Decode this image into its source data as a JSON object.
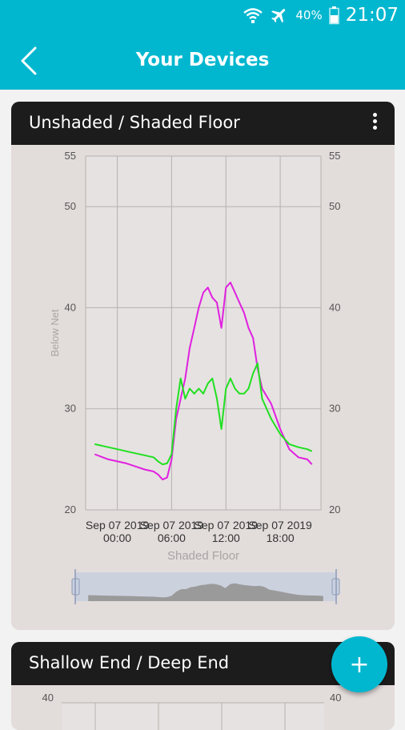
{
  "status": {
    "battery_percent": "40%",
    "time": "21:07"
  },
  "appbar": {
    "title": "Your Devices"
  },
  "cards": [
    {
      "title": "Unshaded / Shaded Floor",
      "chart_data": {
        "type": "line",
        "title": "",
        "xlabel": "Shaded Floor",
        "ylabel": "Below Net",
        "ylim": [
          20,
          55
        ],
        "y_ticks": [
          "55",
          "50",
          "40",
          "30",
          "20"
        ],
        "x_ticks": [
          {
            "line1": "Sep 07 2019",
            "line2": "00:00"
          },
          {
            "line1": "Sep 07 2019",
            "line2": "06:00"
          },
          {
            "line1": "Sep 07 2019",
            "line2": "12:00"
          },
          {
            "line1": "Sep 07 2019",
            "line2": "18:00"
          }
        ],
        "x": [
          -2.5,
          -1,
          0,
          1,
          2,
          3,
          4,
          4.5,
          5,
          5.5,
          6,
          6.5,
          7,
          7.5,
          8,
          8.5,
          9,
          9.5,
          10,
          10.5,
          11,
          11.5,
          12,
          12.5,
          13,
          13.5,
          14,
          14.5,
          15,
          15.5,
          16,
          17,
          18,
          19,
          20,
          21,
          21.5
        ],
        "series": [
          {
            "color": "#e020e0",
            "values": [
              25.5,
              25,
              24.8,
              24.6,
              24.3,
              24,
              23.8,
              23.5,
              23,
              23.2,
              25,
              29,
              31,
              33,
              36,
              38,
              40,
              41.5,
              42,
              41,
              40.5,
              38,
              42,
              42.5,
              41.5,
              40.5,
              39.5,
              38,
              37,
              34,
              32,
              30.5,
              28,
              26,
              25.2,
              25,
              24.5
            ]
          },
          {
            "color": "#20e020",
            "values": [
              26.5,
              26.2,
              26,
              25.8,
              25.6,
              25.4,
              25.2,
              24.8,
              24.5,
              24.6,
              25.5,
              30,
              33,
              31,
              32,
              31.5,
              32,
              31.5,
              32.5,
              33,
              31,
              28,
              32,
              33,
              32,
              31.5,
              31.5,
              32,
              33.5,
              34.5,
              31,
              29,
              27.5,
              26.5,
              26.2,
              26,
              25.8
            ]
          }
        ],
        "x_range": [
          -3.5,
          22.5
        ],
        "navigator": true
      }
    },
    {
      "title": "Shallow End / Deep End",
      "chart_data": {
        "type": "line",
        "y_ticks": [
          "40"
        ]
      }
    }
  ],
  "icons": {
    "wifi": "wifi-icon",
    "airplane": "airplane-mode-icon",
    "battery": "battery-icon",
    "back": "back-arrow-icon",
    "menu": "overflow-menu-icon",
    "add": "add-icon"
  },
  "fab": {
    "label": "+"
  },
  "colors": {
    "accent": "#00b7cf",
    "card_header": "#1c1c1c",
    "card_body": "#e2dcdb"
  }
}
